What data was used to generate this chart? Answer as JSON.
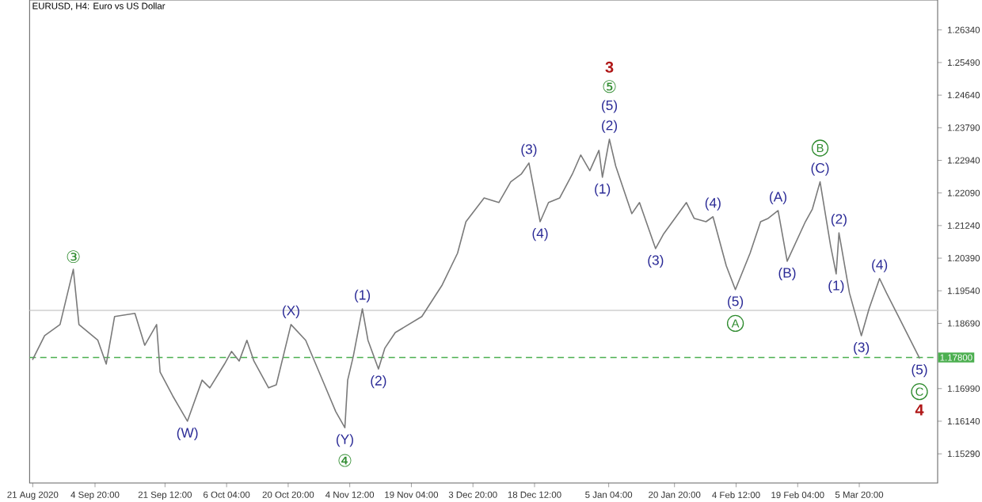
{
  "chart_data": {
    "type": "line",
    "title": "EURUSD, H4:  Euro vs US Dollar",
    "series": [
      {
        "color": "#7a7a7a",
        "x": [
          "2020-08-21T00:00",
          "2020-08-23T20:00",
          "2020-08-27T12:00",
          "2020-08-30T16:00",
          "2020-09-01T00:00",
          "2020-09-05T12:00",
          "2020-09-07T12:00",
          "2020-09-09T12:00",
          "2020-09-14T08:00",
          "2020-09-16T16:00",
          "2020-09-19T12:00",
          "2020-09-20T08:00",
          "2020-09-23T08:00",
          "2020-09-26T20:00",
          "2020-09-30T08:00",
          "2020-10-02T04:00",
          "2020-10-05T16:00",
          "2020-10-07T08:00",
          "2020-10-09T04:00",
          "2020-10-11T00:00",
          "2020-10-12T16:00",
          "2020-10-16T04:00",
          "2020-10-18T00:00",
          "2020-10-21T12:00",
          "2020-10-25T00:00",
          "2020-10-28T16:00",
          "2020-11-01T04:00",
          "2020-11-03T08:00",
          "2020-11-04T00:00",
          "2020-11-05T08:00",
          "2020-11-07T12:00",
          "2020-11-08T20:00",
          "2020-11-11T08:00",
          "2020-11-12T20:00",
          "2020-11-15T08:00",
          "2020-11-21T16:00",
          "2020-11-26T12:00",
          "2020-11-30T04:00",
          "2020-12-02T04:00",
          "2020-12-06T12:00",
          "2020-12-10T00:00",
          "2020-12-12T20:00",
          "2020-12-15T08:00",
          "2020-12-17T04:00",
          "2020-12-19T20:00",
          "2020-12-21T20:00",
          "2020-12-24T12:00",
          "2020-12-27T12:00",
          "2020-12-29T12:00",
          "2020-12-31T16:00",
          "2021-01-02T20:00",
          "2021-01-03T16:00",
          "2021-01-05T08:00",
          "2021-01-06T20:00",
          "2021-01-10T16:00",
          "2021-01-12T12:00",
          "2021-01-16T08:00",
          "2021-01-18T04:00",
          "2021-01-23T16:00",
          "2021-01-25T12:00",
          "2021-01-28T08:00",
          "2021-01-30T00:00",
          "2021-02-02T04:00",
          "2021-02-04T08:00",
          "2021-02-07T20:00",
          "2021-02-10T08:00",
          "2021-02-12T04:00",
          "2021-02-14T12:00",
          "2021-02-16T16:00",
          "2021-02-21T00:00",
          "2021-02-22T16:00",
          "2021-02-24T12:00",
          "2021-02-27T00:00",
          "2021-02-28T08:00",
          "2021-03-01T00:00",
          "2021-03-03T12:00",
          "2021-03-06T08:00",
          "2021-03-08T04:00",
          "2021-03-10T16:00",
          "2021-03-12T08:00",
          "2021-03-15T04:00",
          "2021-03-20T04:00"
        ],
        "values": [
          1.1775,
          1.1837,
          1.1866,
          1.201,
          1.1866,
          1.1825,
          1.1763,
          1.1887,
          1.1895,
          1.1812,
          1.1866,
          1.1742,
          1.168,
          1.1614,
          1.1721,
          1.1701,
          1.1763,
          1.1796,
          1.1771,
          1.1825,
          1.1771,
          1.1701,
          1.1709,
          1.1866,
          1.1825,
          1.173,
          1.1639,
          1.1597,
          1.1721,
          1.1783,
          1.1907,
          1.1825,
          1.175,
          1.1804,
          1.1845,
          1.1887,
          1.1969,
          1.2052,
          1.2134,
          1.2196,
          1.2184,
          1.2238,
          1.2258,
          1.2287,
          1.2134,
          1.2184,
          1.2196,
          1.2258,
          1.2308,
          1.2267,
          1.232,
          1.225,
          1.2349,
          1.2279,
          1.2155,
          1.2184,
          1.2064,
          1.2101,
          1.2184,
          1.2143,
          1.2134,
          1.2147,
          1.2019,
          1.1957,
          1.2052,
          1.2134,
          1.2143,
          1.2163,
          1.2031,
          1.2134,
          1.2167,
          1.2238,
          1.2072,
          1.1998,
          1.2105,
          1.1948,
          1.1837,
          1.1907,
          1.1986,
          1.1948,
          1.1887,
          1.1779
        ]
      }
    ],
    "xlim": [
      "2020-08-20T06:00",
      "2021-03-24T12:00"
    ],
    "ylim": [
      1.1453,
      1.2712
    ],
    "xticks": [
      {
        "value": "2020-08-21",
        "label": "21 Aug 2020"
      },
      {
        "value": "2020-09-04T20:00",
        "label": "4 Sep 20:00"
      },
      {
        "value": "2020-09-21T12:00",
        "label": "21 Sep 12:00"
      },
      {
        "value": "2020-10-06T04:00",
        "label": "6 Oct 04:00"
      },
      {
        "value": "2020-10-20T20:00",
        "label": "20 Oct 20:00"
      },
      {
        "value": "2020-11-04T12:00",
        "label": "4 Nov 12:00"
      },
      {
        "value": "2020-11-19T04:00",
        "label": "19 Nov 04:00"
      },
      {
        "value": "2020-12-03T20:00",
        "label": "3 Dec 20:00"
      },
      {
        "value": "2020-12-18T12:00",
        "label": "18 Dec 12:00"
      },
      {
        "value": "2021-01-05T04:00",
        "label": "5 Jan 04:00"
      },
      {
        "value": "2021-01-20T20:00",
        "label": "20 Jan 20:00"
      },
      {
        "value": "2021-02-04T12:00",
        "label": "4 Feb 12:00"
      },
      {
        "value": "2021-02-19T04:00",
        "label": "19 Feb 04:00"
      },
      {
        "value": "2021-03-05T20:00",
        "label": "5 Mar 20:00"
      }
    ],
    "yticks": [
      {
        "value": 1.1529,
        "label": "1.15290"
      },
      {
        "value": 1.1614,
        "label": "1.16140"
      },
      {
        "value": 1.1699,
        "label": "1.16990"
      },
      {
        "value": 1.1869,
        "label": "1.18690"
      },
      {
        "value": 1.1954,
        "label": "1.19540"
      },
      {
        "value": 1.2039,
        "label": "1.20390"
      },
      {
        "value": 1.2124,
        "label": "1.21240"
      },
      {
        "value": 1.2209,
        "label": "1.22090"
      },
      {
        "value": 1.2294,
        "label": "1.22940"
      },
      {
        "value": 1.2379,
        "label": "1.23790"
      },
      {
        "value": 1.2464,
        "label": "1.24640"
      },
      {
        "value": 1.2549,
        "label": "1.25490"
      },
      {
        "value": 1.2634,
        "label": "1.26340"
      }
    ],
    "ref_lines": [
      {
        "axis": "y",
        "value": 1.178,
        "label": "1.17800",
        "color": "#4caf50",
        "line_style": "dashed"
      },
      {
        "axis": "y",
        "value": 1.1903,
        "color": "#cfcfcf",
        "line_style": "solid"
      }
    ],
    "annotations": [
      {
        "text": "③",
        "x": "2020-08-30T16:00",
        "y": 1.201
      },
      {
        "text": "(W)",
        "x": "2020-09-26T20:00",
        "y": 1.1614
      },
      {
        "text": "(X)",
        "x": "2020-10-21T12:00",
        "y": 1.1866
      },
      {
        "text": "(Y)",
        "x": "2020-11-03T08:00",
        "y": 1.1597
      },
      {
        "text": "④",
        "x": "2020-11-03T08:00",
        "y": 1.1597
      },
      {
        "text": "(1)",
        "x": "2020-11-07T12:00",
        "y": 1.1907
      },
      {
        "text": "(2)",
        "x": "2020-11-11T08:00",
        "y": 1.175
      },
      {
        "text": "(3)",
        "x": "2020-12-17T04:00",
        "y": 1.2287
      },
      {
        "text": "(4)",
        "x": "2020-12-19T20:00",
        "y": 1.2134
      },
      {
        "text": "(1)",
        "x": "2021-01-03T16:00",
        "y": 1.225
      },
      {
        "text": "(2)",
        "x": "2021-01-05T08:00",
        "y": 1.2349
      },
      {
        "text": "(5)",
        "x": "2021-01-05T08:00",
        "y": 1.2349
      },
      {
        "text": "⑤",
        "x": "2021-01-05T08:00",
        "y": 1.2349
      },
      "3",
      {
        "text": "(3)",
        "x": "2021-01-16T08:00",
        "y": 1.2064
      },
      {
        "text": "(4)",
        "x": "2021-01-30T00:00",
        "y": 1.2147
      },
      {
        "text": "(5)",
        "x": "2021-02-04T08:00",
        "y": 1.1957
      },
      {
        "text": "A",
        "x": "2021-02-04T08:00",
        "y": 1.1957
      },
      {
        "text": "(A)",
        "x": "2021-02-14T12:00",
        "y": 1.2163
      },
      {
        "text": "(B)",
        "x": "2021-02-16T16:00",
        "y": 1.2031
      },
      {
        "text": "(C)",
        "x": "2021-02-24T12:00",
        "y": 1.2238
      },
      {
        "text": "B",
        "x": "2021-02-24T12:00",
        "y": 1.2238
      },
      {
        "text": "(1)",
        "x": "2021-02-28T08:00",
        "y": 1.1998
      },
      {
        "text": "(2)",
        "x": "2021-03-01T00:00",
        "y": 1.2105
      },
      {
        "text": "(3)",
        "x": "2021-03-06T08:00",
        "y": 1.1837
      },
      {
        "text": "(4)",
        "x": "2021-03-10T16:00",
        "y": 1.1986
      },
      {
        "text": "(5)",
        "x": "2021-03-20T04:00",
        "y": 1.1779
      },
      {
        "text": "C",
        "x": "2021-03-20T04:00",
        "y": 1.1779
      },
      {
        "text": "4",
        "x": "2021-03-20T04:00",
        "y": 1.1779
      }
    ]
  }
}
